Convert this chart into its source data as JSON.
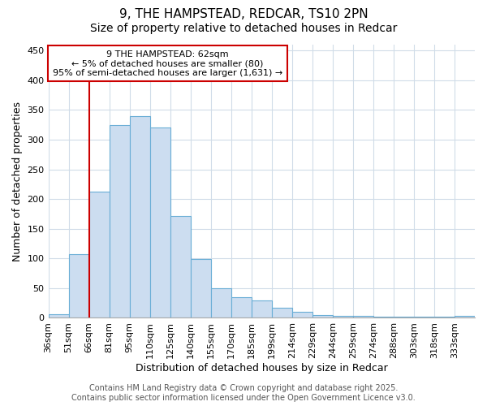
{
  "title_line1": "9, THE HAMPSTEAD, REDCAR, TS10 2PN",
  "title_line2": "Size of property relative to detached houses in Redcar",
  "xlabel": "Distribution of detached houses by size in Redcar",
  "ylabel": "Number of detached properties",
  "categories": [
    "36sqm",
    "51sqm",
    "66sqm",
    "81sqm",
    "95sqm",
    "110sqm",
    "125sqm",
    "140sqm",
    "155sqm",
    "170sqm",
    "185sqm",
    "199sqm",
    "214sqm",
    "229sqm",
    "244sqm",
    "259sqm",
    "274sqm",
    "288sqm",
    "303sqm",
    "318sqm",
    "333sqm"
  ],
  "values": [
    6,
    107,
    212,
    325,
    340,
    320,
    172,
    99,
    50,
    35,
    30,
    17,
    10,
    5,
    4,
    3,
    2,
    2,
    2,
    2,
    3
  ],
  "bar_color": "#ccddf0",
  "bar_edge_color": "#6aaed6",
  "bar_edge_width": 0.8,
  "red_line_x": 2,
  "red_line_color": "#cc0000",
  "ylim": [
    0,
    460
  ],
  "annotation_text": "9 THE HAMPSTEAD: 62sqm\n← 5% of detached houses are smaller (80)\n95% of semi-detached houses are larger (1,631) →",
  "annotation_box_color": "#ffffff",
  "annotation_box_edge_color": "#cc0000",
  "footer_line1": "Contains HM Land Registry data © Crown copyright and database right 2025.",
  "footer_line2": "Contains public sector information licensed under the Open Government Licence v3.0.",
  "background_color": "#ffffff",
  "plot_bg_color": "#ffffff",
  "grid_color": "#d0dce8",
  "title_fontsize": 11,
  "subtitle_fontsize": 10,
  "tick_fontsize": 8,
  "ylabel_fontsize": 9,
  "xlabel_fontsize": 9,
  "annotation_fontsize": 8,
  "footer_fontsize": 7
}
